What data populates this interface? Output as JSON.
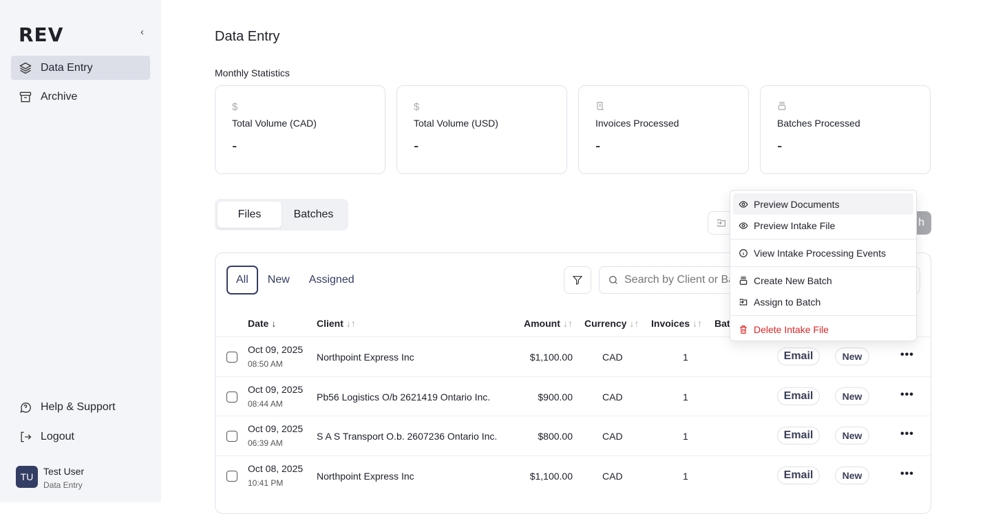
{
  "sidebar": {
    "logo": "REV",
    "collapse": "‹",
    "items": [
      {
        "label": "Data Entry",
        "icon": "layers-icon",
        "active": true
      },
      {
        "label": "Archive",
        "icon": "archive-icon"
      }
    ],
    "bottom": [
      {
        "label": "Help & Support",
        "icon": "help-chat-icon"
      },
      {
        "label": "Logout",
        "icon": "logout-icon"
      }
    ],
    "user": {
      "initials": "TU",
      "name": "Test User",
      "role": "Data Entry"
    }
  },
  "header": {
    "title": "Data Entry",
    "section": "Monthly Statistics"
  },
  "stats": [
    {
      "icon": "$",
      "label": "Total Volume (CAD)",
      "value": "-"
    },
    {
      "icon": "$",
      "label": "Total Volume (USD)",
      "value": "-"
    },
    {
      "icon": "receipt-icon",
      "label": "Invoices Processed",
      "value": "-"
    },
    {
      "icon": "stack-icon",
      "label": "Batches Processed",
      "value": "-"
    }
  ],
  "view_tabs": [
    "Files",
    "Batches"
  ],
  "actions": {
    "partial_button_text": "h"
  },
  "filter_tabs": [
    "All",
    "New",
    "Assigned"
  ],
  "search": {
    "placeholder": "Search by Client or Batch"
  },
  "columns": {
    "date": "Date",
    "client": "Client",
    "amount": "Amount",
    "currency": "Currency",
    "invoices": "Invoices",
    "batch": "Batc"
  },
  "sort_icons": {
    "down": "↓",
    "both": "↓↑"
  },
  "rows": [
    {
      "date": "Oct 09, 2025",
      "time": "08:50 AM",
      "client": "Northpoint Express Inc",
      "amount": "$1,100.00",
      "currency": "CAD",
      "invoices": "1",
      "source": "Email",
      "status": "New"
    },
    {
      "date": "Oct 09, 2025",
      "time": "08:44 AM",
      "client": "Pb56 Logistics O/b 2621419 Ontario Inc.",
      "amount": "$900.00",
      "currency": "CAD",
      "invoices": "1",
      "source": "Email",
      "status": "New"
    },
    {
      "date": "Oct 09, 2025",
      "time": "06:39 AM",
      "client": "S A S Transport O.b. 2607236 Ontario Inc.",
      "amount": "$800.00",
      "currency": "CAD",
      "invoices": "1",
      "source": "Email",
      "status": "New"
    },
    {
      "date": "Oct 08, 2025",
      "time": "10:41 PM",
      "client": "Northpoint Express Inc",
      "amount": "$1,100.00",
      "currency": "CAD",
      "invoices": "1",
      "source": "Email",
      "status": "New"
    }
  ],
  "row_menu": "•••",
  "context_menu": [
    {
      "label": "Preview Documents",
      "icon": "eye-icon"
    },
    {
      "label": "Preview Intake File",
      "icon": "eye-icon"
    },
    {
      "label": "View Intake Processing Events",
      "icon": "info-icon"
    },
    {
      "label": "Create New Batch",
      "icon": "stack-icon"
    },
    {
      "label": "Assign to Batch",
      "icon": "assign-icon"
    },
    {
      "label": "Delete Intake File",
      "icon": "trash-icon",
      "color": "#dc2626"
    }
  ],
  "colors": {
    "accent": "#343d63",
    "danger": "#dc2626",
    "sidebar_bg": "#f4f5f8"
  }
}
